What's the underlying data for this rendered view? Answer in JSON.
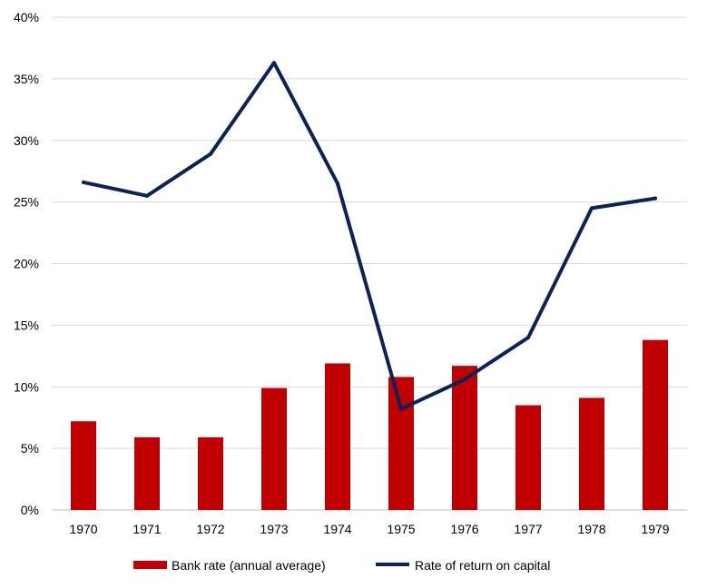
{
  "chart_data": {
    "type": "bar+line",
    "categories": [
      "1970",
      "1971",
      "1972",
      "1973",
      "1974",
      "1975",
      "1976",
      "1977",
      "1978",
      "1979"
    ],
    "series": [
      {
        "name": "Bank rate (annual average)",
        "type": "bar",
        "color": "#c00000",
        "values": [
          7.2,
          5.9,
          5.9,
          9.9,
          11.9,
          10.8,
          11.7,
          8.5,
          9.1,
          13.8
        ]
      },
      {
        "name": "Rate of return on capital",
        "type": "line",
        "color": "#0b2359",
        "values": [
          26.6,
          25.5,
          28.9,
          36.3,
          26.5,
          8.2,
          10.6,
          14.0,
          24.5,
          25.3
        ]
      }
    ],
    "ylim": [
      0,
      40
    ],
    "yticks": [
      0,
      5,
      10,
      15,
      20,
      25,
      30,
      35,
      40
    ],
    "ytick_labels": [
      "0%",
      "5%",
      "10%",
      "15%",
      "20%",
      "25%",
      "30%",
      "35%",
      "40%"
    ],
    "title": "",
    "xlabel": "",
    "ylabel": "",
    "grid": true,
    "legend_position": "bottom"
  }
}
